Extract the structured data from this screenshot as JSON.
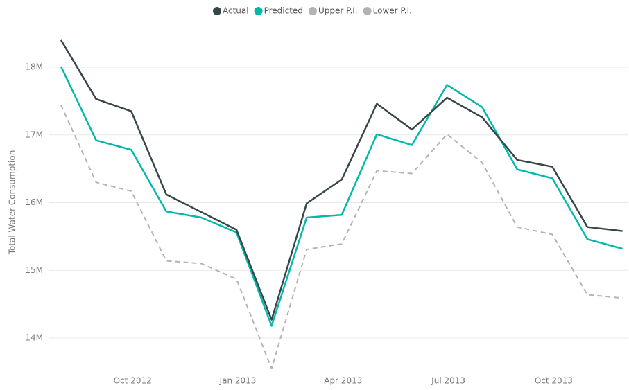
{
  "chart_data": {
    "type": "line",
    "y_label": "Total Water Consumption",
    "categories": [
      null,
      null,
      "Oct 2012",
      null,
      null,
      "Jan 2013",
      null,
      null,
      "Apr 2013",
      null,
      null,
      "Jul 2013",
      null,
      null,
      "Oct 2013",
      null,
      null
    ],
    "series": [
      {
        "name": "Actual",
        "color": "#374649",
        "dashed": false,
        "values": [
          18400000,
          17530000,
          17350000,
          16120000,
          15860000,
          15600000,
          14270000,
          15990000,
          16340000,
          17460000,
          17080000,
          17550000,
          17260000,
          16630000,
          16530000,
          15640000,
          15580000
        ]
      },
      {
        "name": "Predicted",
        "color": "#01b8aa",
        "dashed": false,
        "values": [
          18010000,
          16920000,
          16780000,
          15870000,
          15780000,
          15560000,
          14180000,
          15780000,
          15820000,
          17010000,
          16850000,
          17740000,
          17410000,
          16490000,
          16360000,
          15460000,
          15320000
        ]
      },
      {
        "name": "Upper P.I.",
        "color": "#b3b3b3",
        "dashed": true,
        "values": [
          18010000,
          16920000,
          16780000,
          15870000,
          15780000,
          15560000,
          14180000,
          15780000,
          15820000,
          17010000,
          16850000,
          17740000,
          17410000,
          16490000,
          16360000,
          15460000,
          15320000
        ]
      },
      {
        "name": "Lower P.I.",
        "color": "#b3b3b3",
        "dashed": true,
        "values": [
          17440000,
          16300000,
          16170000,
          15140000,
          15100000,
          14870000,
          13550000,
          15310000,
          15390000,
          16470000,
          16430000,
          17010000,
          16590000,
          15640000,
          15530000,
          14640000,
          14590000
        ]
      }
    ],
    "ylim": [
      13400000,
      18600000
    ],
    "yticks": [
      {
        "value": 14000000,
        "label": "14M"
      },
      {
        "value": 15000000,
        "label": "15M"
      },
      {
        "value": 16000000,
        "label": "16M"
      },
      {
        "value": 17000000,
        "label": "17M"
      },
      {
        "value": 18000000,
        "label": "18M"
      }
    ],
    "grid": true,
    "legend": "top"
  }
}
